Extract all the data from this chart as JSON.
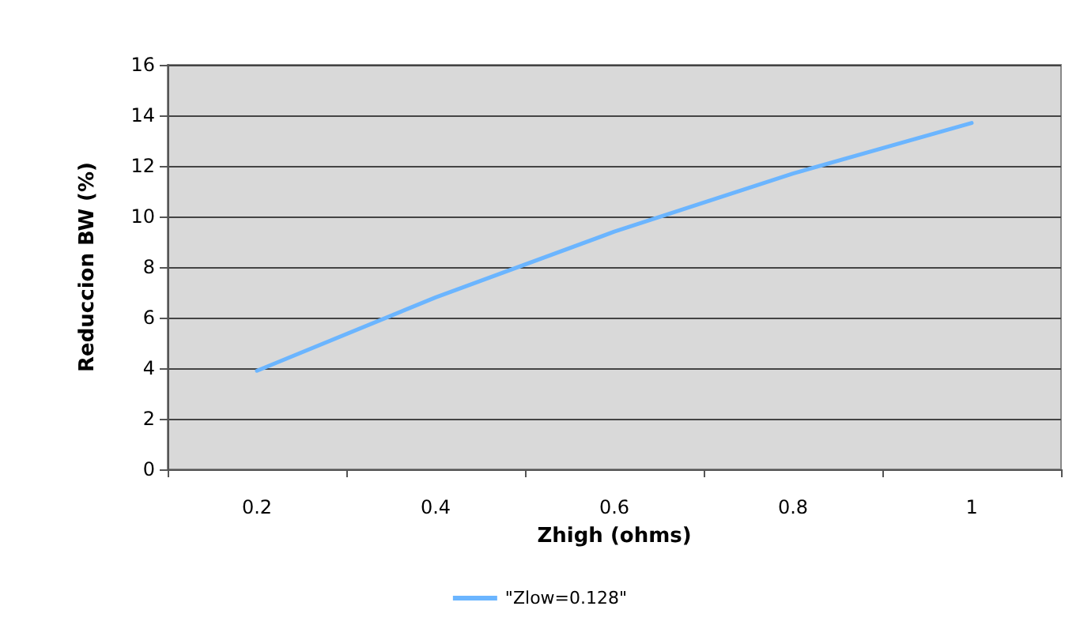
{
  "chart_data": {
    "type": "line",
    "xlabel": "Zhigh (ohms)",
    "ylabel": "Reduccion BW (%)",
    "categories": [
      "0.2",
      "0.4",
      "0.6",
      "0.8",
      "1"
    ],
    "series": [
      {
        "name": "\"Zlow=0.128\"",
        "color": "#6bb5ff",
        "values": [
          3.9,
          6.8,
          9.4,
          11.7,
          13.7
        ]
      }
    ],
    "ylim": [
      0,
      16
    ],
    "yticks": [
      0,
      2,
      4,
      6,
      8,
      10,
      12,
      14,
      16
    ],
    "grid": "y",
    "legend": "bottom",
    "marker": "none"
  }
}
